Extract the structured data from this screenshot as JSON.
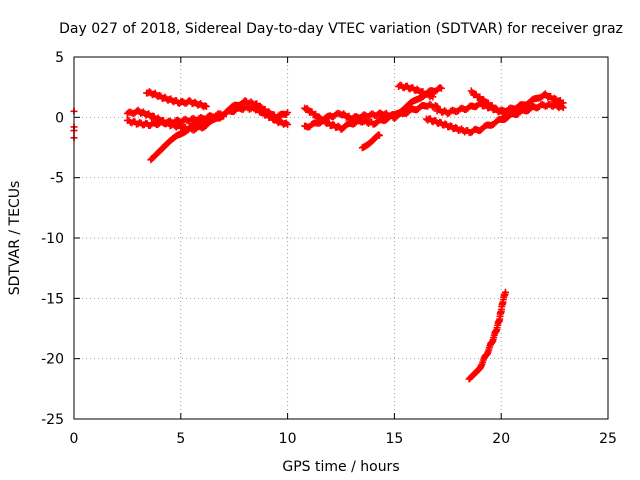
{
  "chart_data": {
    "type": "scatter",
    "title": "Day 027 of 2018, Sidereal Day-to-day VTEC variation (SDTVAR) for receiver graz",
    "xlabel": "GPS time / hours",
    "ylabel": "SDTVAR / TECUs",
    "xlim": [
      0,
      25
    ],
    "ylim": [
      -25,
      5
    ],
    "xticks": [
      0,
      5,
      10,
      15,
      20,
      25
    ],
    "yticks": [
      -25,
      -20,
      -15,
      -10,
      -5,
      0,
      5
    ],
    "grid": true,
    "marker": "+",
    "color": "#ff0000",
    "series": [
      {
        "name": "isolated-points",
        "points": [
          [
            0.0,
            0.5
          ],
          [
            0.0,
            -0.8
          ],
          [
            0.0,
            -1.1
          ],
          [
            0.0,
            -1.7
          ]
        ]
      },
      {
        "name": "band-main-lower",
        "points": [
          [
            2.5,
            -0.3
          ],
          [
            3.0,
            -0.5
          ],
          [
            3.5,
            -0.6
          ],
          [
            4.0,
            -0.5
          ],
          [
            4.5,
            -0.4
          ],
          [
            5.0,
            -0.3
          ],
          [
            5.5,
            -0.2
          ],
          [
            6.0,
            -0.1
          ],
          [
            6.5,
            0.1
          ],
          [
            7.0,
            0.3
          ],
          [
            7.5,
            0.6
          ],
          [
            8.0,
            0.8
          ],
          [
            8.5,
            0.7
          ],
          [
            9.0,
            0.2
          ],
          [
            9.5,
            -0.3
          ],
          [
            10.0,
            -0.6
          ]
        ]
      },
      {
        "name": "band-main-upper",
        "points": [
          [
            2.5,
            0.3
          ],
          [
            3.0,
            0.5
          ],
          [
            3.5,
            0.2
          ],
          [
            4.0,
            -0.2
          ],
          [
            4.5,
            -0.6
          ],
          [
            5.0,
            -0.8
          ],
          [
            5.5,
            -1.0
          ],
          [
            6.0,
            -0.8
          ],
          [
            6.5,
            -0.3
          ],
          [
            7.0,
            0.3
          ],
          [
            7.5,
            0.9
          ],
          [
            8.0,
            1.3
          ],
          [
            8.5,
            1.1
          ],
          [
            9.0,
            0.5
          ],
          [
            9.5,
            0.0
          ],
          [
            10.0,
            0.4
          ]
        ]
      },
      {
        "name": "arc-top-early",
        "points": [
          [
            3.4,
            2.1
          ],
          [
            3.8,
            1.9
          ],
          [
            4.2,
            1.6
          ],
          [
            4.6,
            1.4
          ],
          [
            5.0,
            1.2
          ],
          [
            5.4,
            1.3
          ],
          [
            5.8,
            1.1
          ],
          [
            6.2,
            0.9
          ]
        ]
      },
      {
        "name": "arc-rising-early",
        "points": [
          [
            3.6,
            -3.5
          ],
          [
            4.0,
            -2.9
          ],
          [
            4.4,
            -2.2
          ],
          [
            4.8,
            -1.6
          ],
          [
            5.2,
            -1.1
          ],
          [
            5.6,
            -0.7
          ],
          [
            6.0,
            -0.4
          ],
          [
            6.5,
            -0.1
          ],
          [
            7.0,
            0.1
          ]
        ]
      },
      {
        "name": "band-right-a",
        "points": [
          [
            10.8,
            0.8
          ],
          [
            11.2,
            0.3
          ],
          [
            11.6,
            -0.2
          ],
          [
            12.0,
            -0.6
          ],
          [
            12.5,
            -0.9
          ],
          [
            13.0,
            -0.5
          ],
          [
            13.5,
            -0.3
          ],
          [
            14.0,
            -0.5
          ],
          [
            14.5,
            -0.2
          ],
          [
            15.0,
            0.2
          ],
          [
            15.5,
            0.8
          ],
          [
            16.0,
            1.4
          ],
          [
            16.4,
            1.9
          ],
          [
            16.8,
            2.2
          ],
          [
            17.2,
            2.4
          ]
        ]
      },
      {
        "name": "band-right-b",
        "points": [
          [
            10.8,
            -0.8
          ],
          [
            11.2,
            -0.6
          ],
          [
            11.6,
            -0.3
          ],
          [
            12.0,
            0.1
          ],
          [
            12.5,
            0.3
          ],
          [
            13.0,
            -0.1
          ],
          [
            13.5,
            0.1
          ],
          [
            14.0,
            0.2
          ],
          [
            14.5,
            0.3
          ],
          [
            15.0,
            0.0
          ],
          [
            15.5,
            0.4
          ],
          [
            16.0,
            0.7
          ],
          [
            16.5,
            1.0
          ],
          [
            17.0,
            0.9
          ]
        ]
      },
      {
        "name": "arc-lower-mid",
        "points": [
          [
            13.5,
            -2.5
          ],
          [
            13.8,
            -2.1
          ],
          [
            14.1,
            -1.7
          ],
          [
            14.3,
            -1.5
          ]
        ]
      },
      {
        "name": "arc-top-mid",
        "points": [
          [
            15.2,
            2.6
          ],
          [
            15.6,
            2.5
          ],
          [
            16.0,
            2.3
          ],
          [
            16.4,
            2.0
          ],
          [
            16.8,
            1.7
          ]
        ]
      },
      {
        "name": "band-far-right-a",
        "points": [
          [
            16.5,
            -0.1
          ],
          [
            17.0,
            -0.4
          ],
          [
            17.5,
            -0.7
          ],
          [
            18.0,
            -1.0
          ],
          [
            18.5,
            -1.2
          ],
          [
            19.0,
            -1.0
          ],
          [
            19.5,
            -0.6
          ],
          [
            20.0,
            -0.2
          ],
          [
            20.5,
            0.2
          ],
          [
            21.0,
            0.5
          ],
          [
            21.5,
            0.8
          ],
          [
            22.0,
            1.0
          ],
          [
            22.5,
            1.0
          ],
          [
            22.9,
            0.8
          ]
        ]
      },
      {
        "name": "band-far-right-b",
        "points": [
          [
            17.0,
            0.6
          ],
          [
            17.5,
            0.4
          ],
          [
            18.0,
            0.6
          ],
          [
            18.5,
            0.8
          ],
          [
            19.0,
            1.1
          ],
          [
            19.5,
            0.8
          ],
          [
            20.0,
            0.5
          ],
          [
            20.5,
            0.7
          ],
          [
            21.0,
            1.0
          ],
          [
            21.5,
            1.4
          ],
          [
            22.0,
            1.9
          ],
          [
            22.5,
            1.5
          ],
          [
            22.9,
            1.2
          ]
        ]
      },
      {
        "name": "bump-far-right",
        "points": [
          [
            18.6,
            2.1
          ],
          [
            19.0,
            1.6
          ],
          [
            19.4,
            1.1
          ],
          [
            19.8,
            0.6
          ],
          [
            20.2,
            0.3
          ]
        ]
      },
      {
        "name": "dropout-trace",
        "points": [
          [
            18.5,
            -21.7
          ],
          [
            18.7,
            -21.4
          ],
          [
            18.9,
            -21.0
          ],
          [
            19.1,
            -20.4
          ],
          [
            19.3,
            -19.7
          ],
          [
            19.5,
            -18.9
          ],
          [
            19.7,
            -18.0
          ],
          [
            19.9,
            -16.9
          ],
          [
            20.0,
            -16.0
          ],
          [
            20.1,
            -15.1
          ],
          [
            20.2,
            -14.5
          ]
        ]
      }
    ]
  }
}
